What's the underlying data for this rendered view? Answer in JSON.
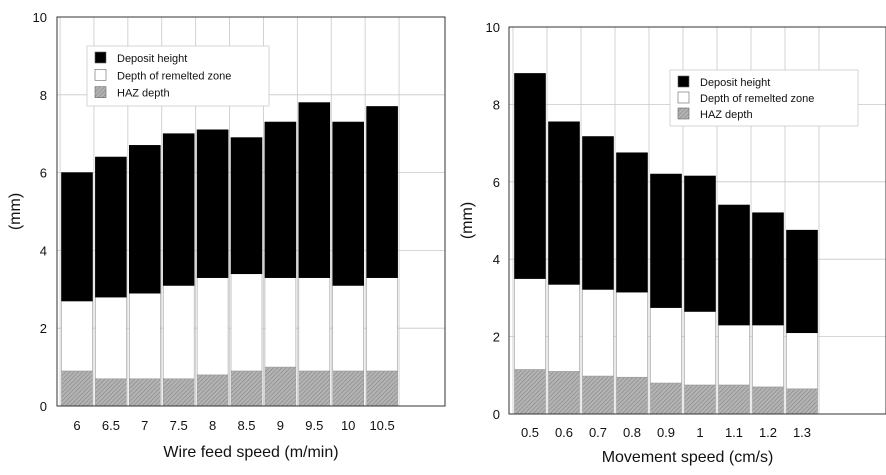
{
  "colors": {
    "deposit": "#000000",
    "remelted": "#ffffff",
    "haz": "#b4b4b4",
    "hatch": "#8a8a8a",
    "frame": "#333333",
    "grid": "#c8c8c8"
  },
  "chart_data": [
    {
      "type": "bar",
      "stacked": true,
      "title": "",
      "xlabel": "Wire feed speed (m/min)",
      "ylabel": "(mm)",
      "ylim": [
        0,
        10
      ],
      "yticks": [
        0,
        2,
        4,
        6,
        8,
        10
      ],
      "grid": true,
      "legend_position": "top-left",
      "legend": [
        "Deposit height",
        "Depth of remelted zone",
        "HAZ depth"
      ],
      "categories": [
        "6",
        "6.5",
        "7",
        "7.5",
        "8",
        "8.5",
        "9",
        "9.5",
        "10",
        "10.5"
      ],
      "series": [
        {
          "name": "HAZ depth",
          "values": [
            0.9,
            0.7,
            0.7,
            0.7,
            0.8,
            0.9,
            1.0,
            0.9,
            0.9,
            0.9
          ]
        },
        {
          "name": "Depth of remelted zone",
          "values": [
            1.8,
            2.1,
            2.2,
            2.4,
            2.5,
            2.5,
            2.3,
            2.4,
            2.2,
            2.4
          ]
        },
        {
          "name": "Deposit height",
          "values": [
            3.3,
            3.6,
            3.8,
            3.9,
            3.8,
            3.5,
            4.0,
            4.5,
            4.2,
            4.4
          ]
        }
      ]
    },
    {
      "type": "bar",
      "stacked": true,
      "title": "",
      "xlabel": "Movement speed  (cm/s)",
      "ylabel": "(mm)",
      "ylim": [
        0,
        10
      ],
      "yticks": [
        0,
        2,
        4,
        6,
        8,
        10
      ],
      "grid": true,
      "legend_position": "top-right",
      "legend": [
        "Deposit height",
        "Depth of remelted zone",
        "HAZ depth"
      ],
      "categories": [
        "0.5",
        "0.6",
        "0.7",
        "0.8",
        "0.9",
        "1",
        "1.1",
        "1.2",
        "1.3"
      ],
      "series": [
        {
          "name": "HAZ depth",
          "values": [
            1.15,
            1.1,
            0.98,
            0.95,
            0.8,
            0.75,
            0.75,
            0.7,
            0.65
          ]
        },
        {
          "name": "Depth of remelted zone",
          "values": [
            2.35,
            2.25,
            2.24,
            2.2,
            1.95,
            1.9,
            1.55,
            1.6,
            1.45
          ]
        },
        {
          "name": "Deposit height",
          "values": [
            5.3,
            4.2,
            3.95,
            3.6,
            3.45,
            3.5,
            3.1,
            2.9,
            2.65
          ]
        }
      ]
    }
  ]
}
